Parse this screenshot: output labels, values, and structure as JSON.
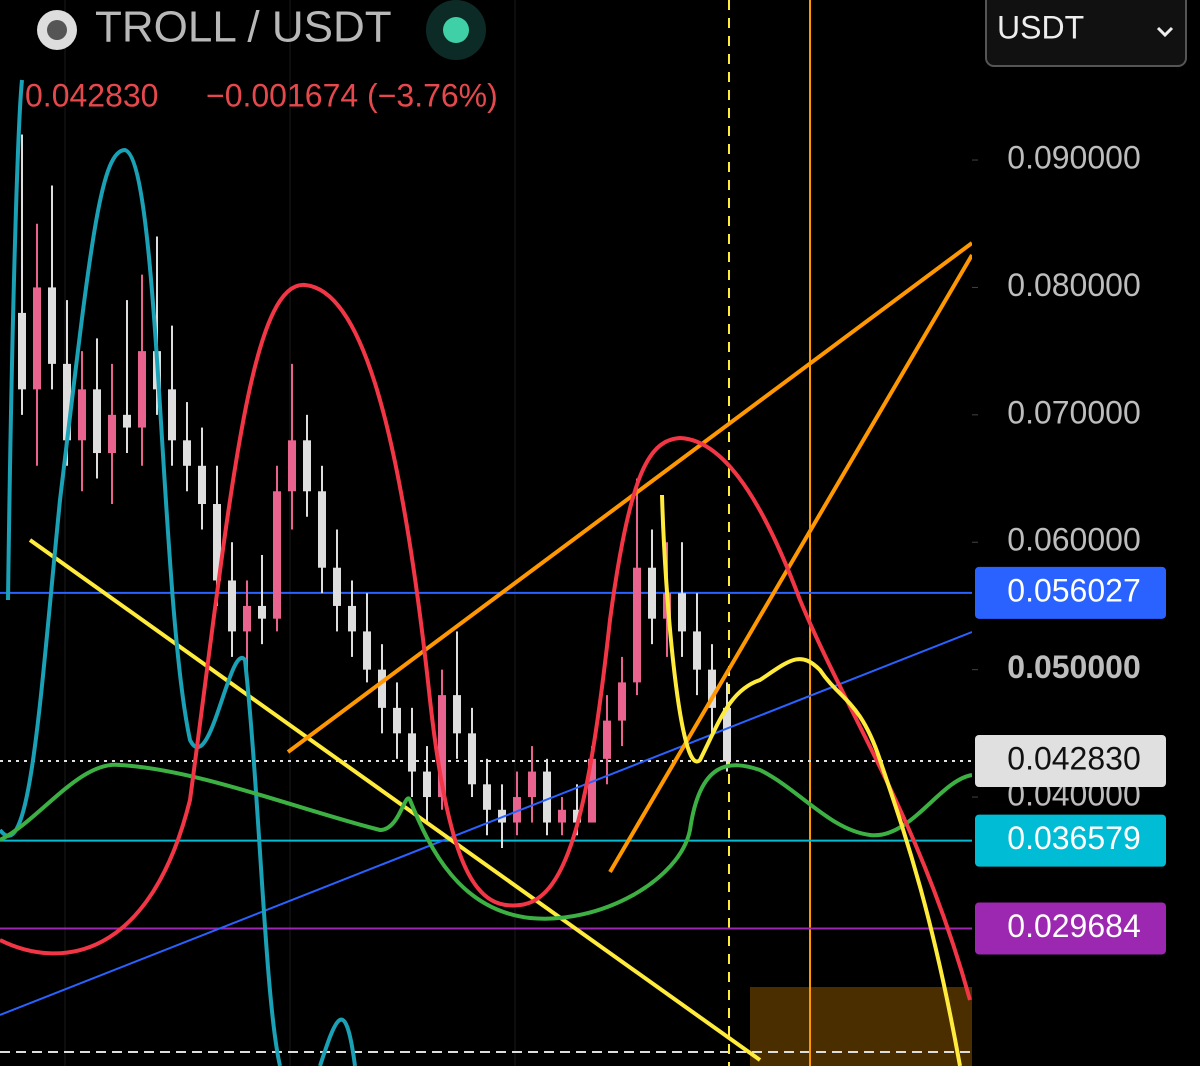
{
  "header": {
    "symbol": "TROLL / USDT",
    "price": "0.042830",
    "change": "−0.001674 (−3.76%)",
    "quote_select": "USDT"
  },
  "axis": {
    "ylim": [
      0.01889,
      0.10256
    ],
    "yticks": [
      {
        "value": 0.09,
        "label": "0.090000"
      },
      {
        "value": 0.08,
        "label": "0.080000"
      },
      {
        "value": 0.07,
        "label": "0.070000"
      },
      {
        "value": 0.06,
        "label": "0.060000"
      },
      {
        "value": 0.05,
        "label": "0.050000"
      },
      {
        "value": 0.04,
        "label": "0.040000"
      }
    ]
  },
  "price_lines": [
    {
      "value": 0.056027,
      "label": "0.056027",
      "color": "#2962ff"
    },
    {
      "value": 0.04283,
      "label": "0.042830",
      "color": "#e0e0e0"
    },
    {
      "value": 0.036579,
      "label": "0.036579",
      "color": "#00bcd4"
    },
    {
      "value": 0.029684,
      "label": "0.029684",
      "color": "#9c27b0"
    }
  ],
  "candles": [
    [
      0.078,
      0.092,
      0.07,
      0.072
    ],
    [
      0.072,
      0.085,
      0.066,
      0.08
    ],
    [
      0.08,
      0.088,
      0.072,
      0.074
    ],
    [
      0.074,
      0.079,
      0.066,
      0.068
    ],
    [
      0.068,
      0.075,
      0.064,
      0.072
    ],
    [
      0.072,
      0.076,
      0.065,
      0.067
    ],
    [
      0.067,
      0.074,
      0.063,
      0.07
    ],
    [
      0.07,
      0.079,
      0.067,
      0.069
    ],
    [
      0.069,
      0.081,
      0.066,
      0.075
    ],
    [
      0.075,
      0.084,
      0.07,
      0.072
    ],
    [
      0.072,
      0.077,
      0.066,
      0.068
    ],
    [
      0.068,
      0.071,
      0.064,
      0.066
    ],
    [
      0.066,
      0.069,
      0.061,
      0.063
    ],
    [
      0.063,
      0.066,
      0.055,
      0.057
    ],
    [
      0.057,
      0.06,
      0.051,
      0.053
    ],
    [
      0.053,
      0.057,
      0.049,
      0.055
    ],
    [
      0.055,
      0.059,
      0.052,
      0.054
    ],
    [
      0.054,
      0.066,
      0.053,
      0.064
    ],
    [
      0.064,
      0.074,
      0.061,
      0.068
    ],
    [
      0.068,
      0.07,
      0.062,
      0.064
    ],
    [
      0.064,
      0.066,
      0.056,
      0.058
    ],
    [
      0.058,
      0.061,
      0.053,
      0.055
    ],
    [
      0.055,
      0.057,
      0.051,
      0.053
    ],
    [
      0.053,
      0.056,
      0.049,
      0.05
    ],
    [
      0.05,
      0.052,
      0.045,
      0.047
    ],
    [
      0.047,
      0.049,
      0.043,
      0.045
    ],
    [
      0.045,
      0.047,
      0.04,
      0.042
    ],
    [
      0.042,
      0.044,
      0.038,
      0.04
    ],
    [
      0.04,
      0.05,
      0.039,
      0.048
    ],
    [
      0.048,
      0.053,
      0.043,
      0.045
    ],
    [
      0.045,
      0.047,
      0.04,
      0.041
    ],
    [
      0.041,
      0.043,
      0.037,
      0.039
    ],
    [
      0.039,
      0.041,
      0.036,
      0.038
    ],
    [
      0.038,
      0.042,
      0.037,
      0.04
    ],
    [
      0.04,
      0.044,
      0.038,
      0.042
    ],
    [
      0.042,
      0.043,
      0.037,
      0.038
    ],
    [
      0.038,
      0.04,
      0.037,
      0.039
    ],
    [
      0.039,
      0.041,
      0.037,
      0.038
    ],
    [
      0.038,
      0.044,
      0.038,
      0.043
    ],
    [
      0.043,
      0.048,
      0.041,
      0.046
    ],
    [
      0.046,
      0.051,
      0.044,
      0.049
    ],
    [
      0.049,
      0.065,
      0.048,
      0.058
    ],
    [
      0.058,
      0.061,
      0.052,
      0.054
    ],
    [
      0.054,
      0.06,
      0.051,
      0.056
    ],
    [
      0.056,
      0.06,
      0.051,
      0.053
    ],
    [
      0.053,
      0.056,
      0.048,
      0.05
    ],
    [
      0.05,
      0.052,
      0.045,
      0.047
    ],
    [
      0.047,
      0.049,
      0.042,
      0.0428
    ]
  ]
}
